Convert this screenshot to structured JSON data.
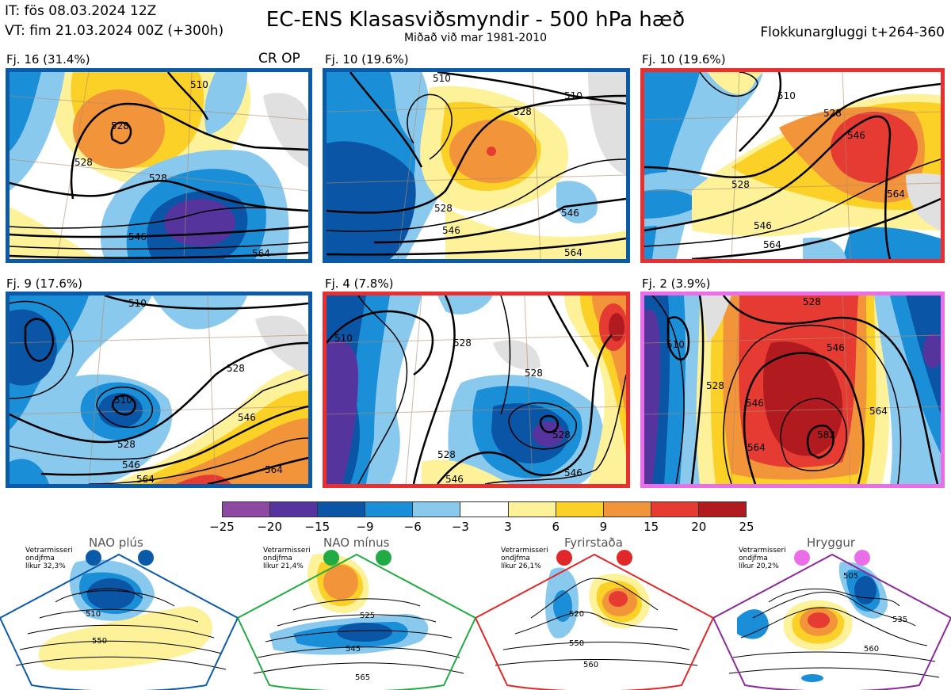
{
  "header": {
    "it_line": "IT: fös 08.03.2024 12Z",
    "vt_line": "VT: fim 21.03.2024 00Z  (+300h)",
    "title": "EC-ENS Klasasviðsmyndir - 500 hPa hæð",
    "subtitle": "Miðað við mar 1981-2010",
    "cluster_window": "Flokkunargluggi t+264-360"
  },
  "panels": [
    {
      "label": "Fj. 16 (31.4%)",
      "extra": "CR OP",
      "border_color": "#0a5aa8",
      "contours": [
        "510",
        "528",
        "528",
        "528",
        "546",
        "564"
      ]
    },
    {
      "label": "Fj. 10 (19.6%)",
      "border_color": "#0a5aa8",
      "contours": [
        "510",
        "510",
        "528",
        "528",
        "546",
        "546",
        "564"
      ]
    },
    {
      "label": "Fj. 10 (19.6%)",
      "border_color": "#e83030",
      "contours": [
        "510",
        "528",
        "528",
        "546",
        "546",
        "564",
        "564"
      ]
    },
    {
      "label": "Fj. 9 (17.6%)",
      "border_color": "#0a5aa8",
      "contours": [
        "510",
        "510",
        "528",
        "528",
        "546",
        "546",
        "564",
        "564"
      ]
    },
    {
      "label": "Fj. 4 (7.8%)",
      "border_color": "#e83030",
      "contours": [
        "510",
        "528",
        "528",
        "546",
        "546",
        "528",
        "528"
      ]
    },
    {
      "label": "Fj. 2 (3.9%)",
      "border_color": "#ea6ee8",
      "contours": [
        "528",
        "510",
        "528",
        "546",
        "546",
        "564",
        "564",
        "582"
      ]
    }
  ],
  "colorbar": {
    "ticks": [
      "−25",
      "−20",
      "−15",
      "−9",
      "−6",
      "−3",
      "3",
      "6",
      "9",
      "15",
      "20",
      "25"
    ],
    "colors": [
      "#8e4aa3",
      "#55349e",
      "#0a55a5",
      "#1a8fd8",
      "#8ac9ee",
      "#ffffff",
      "#fdf199",
      "#fbd127",
      "#f2953a",
      "#e53b33",
      "#b11a1f"
    ]
  },
  "regimes": [
    {
      "title": "NAO plús",
      "note": "Vetrarmisseri\nondjfma\nlíkur 32,3%",
      "color": "#0a5aa8",
      "contours": [
        "510",
        "550"
      ]
    },
    {
      "title": "NAO mínus",
      "note": "Vetrarmisseri\nondjfma\nlíkur 21,4%",
      "color": "#22aa44",
      "contours": [
        "525",
        "545",
        "565"
      ]
    },
    {
      "title": "Fyrirstaða",
      "note": "Vetrarmisseri\nondjfma\nlíkur 26,1%",
      "color": "#e02828",
      "contours": [
        "520",
        "550",
        "560"
      ]
    },
    {
      "title": "Hryggur",
      "note": "Vetrarmisseri\nondjfma\nlíkur 20,2%",
      "color": "#8a2a99",
      "contours": [
        "505",
        "535",
        "560"
      ]
    }
  ]
}
